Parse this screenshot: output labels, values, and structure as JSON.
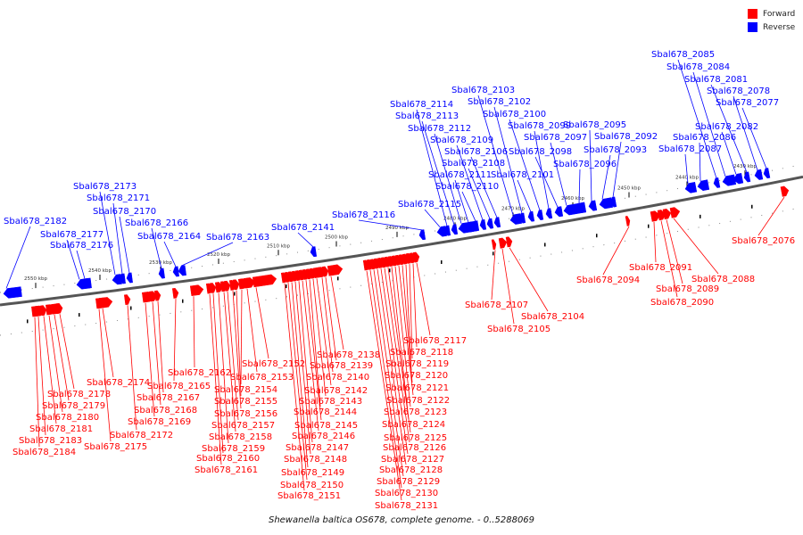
{
  "legend": {
    "forward_label": "Forward",
    "reverse_label": "Reverse",
    "forward_color": "#ff0000",
    "reverse_color": "#0000ff"
  },
  "caption": "Shewanella baltica OS678, complete genome. - 0..5288069",
  "scale_ticks": [
    "2550 kbp",
    "2540 kbp",
    "2530 kbp",
    "2520 kbp",
    "2510 kbp",
    "2500 kbp",
    "2490 kbp",
    "2480 kbp",
    "2470 kbp",
    "2460 kbp",
    "2450 kbp",
    "2440 kbp",
    "2430 kbp"
  ],
  "reverse_genes": [
    "Sbal678_2182",
    "Sbal678_2177",
    "Sbal678_2176",
    "Sbal678_2173",
    "Sbal678_2171",
    "Sbal678_2170",
    "Sbal678_2166",
    "Sbal678_2164",
    "Sbal678_2163",
    "Sbal678_2141",
    "Sbal678_2116",
    "Sbal678_2115",
    "Sbal678_2114",
    "Sbal678_2113",
    "Sbal678_2112",
    "Sbal678_2111",
    "Sbal678_2110",
    "Sbal678_2109",
    "Sbal678_2108",
    "Sbal678_2106",
    "Sbal678_2103",
    "Sbal678_2102",
    "Sbal678_2101",
    "Sbal678_2100",
    "Sbal678_2099",
    "Sbal678_2098",
    "Sbal678_2097",
    "Sbal678_2096",
    "Sbal678_2095",
    "Sbal678_2093",
    "Sbal678_2092",
    "Sbal678_2087",
    "Sbal678_2086",
    "Sbal678_2085",
    "Sbal678_2084",
    "Sbal678_2082",
    "Sbal678_2081",
    "Sbal678_2078",
    "Sbal678_2077"
  ],
  "forward_genes": [
    "Sbal678_2184",
    "Sbal678_2183",
    "Sbal678_2181",
    "Sbal678_2180",
    "Sbal678_2179",
    "Sbal678_2178",
    "Sbal678_2175",
    "Sbal678_2174",
    "Sbal678_2172",
    "Sbal678_2169",
    "Sbal678_2168",
    "Sbal678_2167",
    "Sbal678_2165",
    "Sbal678_2162",
    "Sbal678_2161",
    "Sbal678_2160",
    "Sbal678_2159",
    "Sbal678_2158",
    "Sbal678_2157",
    "Sbal678_2156",
    "Sbal678_2155",
    "Sbal678_2154",
    "Sbal678_2153",
    "Sbal678_2152",
    "Sbal678_2151",
    "Sbal678_2150",
    "Sbal678_2149",
    "Sbal678_2148",
    "Sbal678_2147",
    "Sbal678_2146",
    "Sbal678_2145",
    "Sbal678_2144",
    "Sbal678_2143",
    "Sbal678_2142",
    "Sbal678_2140",
    "Sbal678_2139",
    "Sbal678_2138",
    "Sbal678_2131",
    "Sbal678_2130",
    "Sbal678_2129",
    "Sbal678_2128",
    "Sbal678_2127",
    "Sbal678_2126",
    "Sbal678_2125",
    "Sbal678_2124",
    "Sbal678_2123",
    "Sbal678_2122",
    "Sbal678_2121",
    "Sbal678_2120",
    "Sbal678_2119",
    "Sbal678_2118",
    "Sbal678_2117",
    "Sbal678_2107",
    "Sbal678_2105",
    "Sbal678_2104",
    "Sbal678_2094",
    "Sbal678_2091",
    "Sbal678_2090",
    "Sbal678_2089",
    "Sbal678_2088",
    "Sbal678_2076"
  ]
}
